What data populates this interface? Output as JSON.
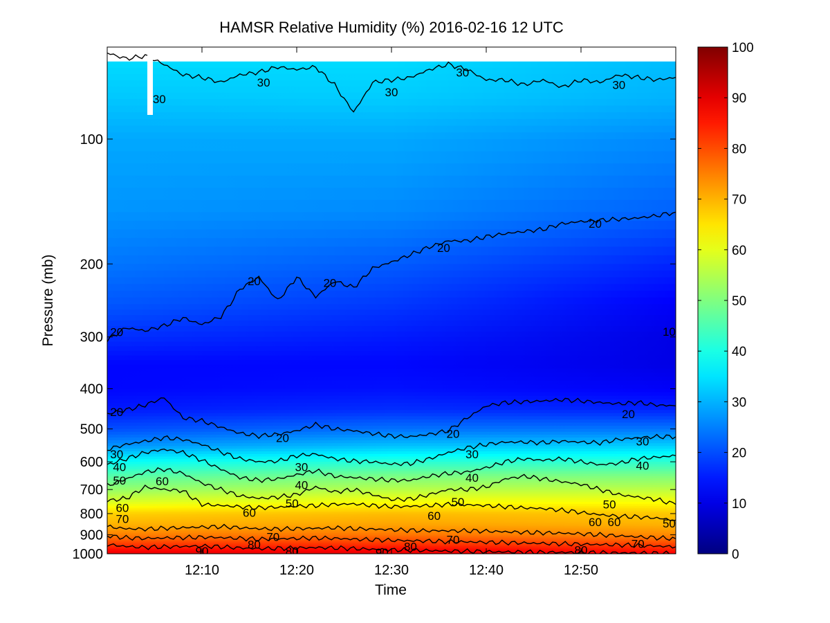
{
  "chart_data": {
    "type": "heatmap",
    "title": "HAMSR  Relative Humidity (%) 2016-02-16 12 UTC",
    "xlabel": "Time",
    "ylabel": "Pressure (mb)",
    "x_ticks": [
      "12:10",
      "12:20",
      "12:30",
      "12:40",
      "12:50"
    ],
    "x_tick_minutes": [
      10,
      20,
      30,
      40,
      50
    ],
    "xlim_minutes": [
      0,
      60
    ],
    "y_ticks": [
      100,
      200,
      300,
      400,
      500,
      600,
      700,
      800,
      900,
      1000
    ],
    "ylim": [
      60,
      1000
    ],
    "y_scale": "log",
    "y_reversed": true,
    "colorbar": {
      "min": 0,
      "max": 100,
      "ticks": [
        0,
        10,
        20,
        30,
        40,
        50,
        60,
        70,
        80,
        90,
        100
      ],
      "colormap": "jet"
    },
    "contour_levels": [
      10,
      20,
      30,
      40,
      50,
      60,
      70,
      80,
      90
    ],
    "profile": {
      "pressure": [
        65,
        80,
        100,
        150,
        200,
        250,
        300,
        350,
        400,
        450,
        500,
        550,
        600,
        650,
        700,
        750,
        800,
        850,
        900,
        950,
        1000
      ],
      "rh_start": [
        34,
        32,
        29,
        27,
        24,
        21,
        17,
        13,
        13,
        15,
        20,
        27,
        38,
        46,
        52,
        59,
        67,
        70,
        75,
        82,
        90
      ],
      "rh_end": [
        31,
        30,
        26,
        22,
        16,
        12,
        10,
        10,
        12,
        16,
        24,
        33,
        42,
        50,
        56,
        62,
        68,
        70,
        74,
        81,
        88
      ]
    },
    "contours": [
      {
        "level": 30,
        "x_minutes": [
          0,
          2,
          4,
          6,
          8,
          10,
          12,
          14,
          16,
          18,
          20,
          22,
          24,
          26,
          28,
          30,
          32,
          34,
          36,
          38,
          40,
          42,
          44,
          46,
          48,
          50,
          52,
          54,
          56,
          58,
          60
        ],
        "pressure": [
          62,
          64,
          63,
          66,
          70,
          71,
          73,
          70,
          69,
          67,
          68,
          67,
          74,
          86,
          73,
          72,
          71,
          68,
          66,
          68,
          72,
          72,
          74,
          72,
          75,
          72,
          73,
          70,
          71,
          72,
          71
        ]
      },
      {
        "level": 20,
        "x_minutes": [
          0,
          2,
          4,
          6,
          8,
          10,
          12,
          14,
          16,
          18,
          20,
          22,
          24,
          26,
          28,
          30,
          32,
          34,
          36,
          38,
          40,
          42,
          44,
          46,
          48,
          50,
          52,
          54,
          56,
          58,
          60
        ],
        "pressure": [
          305,
          285,
          290,
          282,
          270,
          280,
          268,
          230,
          215,
          245,
          215,
          240,
          220,
          228,
          205,
          198,
          190,
          182,
          176,
          176,
          172,
          169,
          167,
          165,
          160,
          158,
          157,
          156,
          155,
          153,
          150
        ]
      },
      {
        "level": 20,
        "x_minutes": [
          0,
          2,
          4,
          6,
          8,
          10,
          12,
          14,
          16,
          18,
          20,
          22,
          24,
          26,
          28,
          30,
          32,
          34,
          36,
          38,
          40,
          42,
          44,
          46,
          48,
          50,
          52,
          54,
          56,
          58,
          60
        ],
        "pressure": [
          460,
          450,
          438,
          420,
          470,
          478,
          495,
          512,
          520,
          515,
          505,
          488,
          500,
          505,
          513,
          520,
          522,
          515,
          505,
          470,
          440,
          432,
          430,
          428,
          425,
          428,
          432,
          435,
          432,
          438,
          440
        ]
      },
      {
        "level": 30,
        "x_minutes": [
          0,
          2,
          4,
          6,
          8,
          10,
          12,
          14,
          16,
          18,
          20,
          22,
          24,
          26,
          28,
          30,
          32,
          34,
          36,
          38,
          40,
          42,
          44,
          46,
          48,
          50,
          52,
          54,
          56,
          58,
          60
        ],
        "pressure": [
          560,
          545,
          535,
          525,
          530,
          545,
          568,
          590,
          600,
          598,
          580,
          575,
          590,
          598,
          600,
          608,
          606,
          590,
          570,
          555,
          545,
          538,
          538,
          540,
          535,
          538,
          540,
          530,
          525,
          522,
          522
        ]
      },
      {
        "level": 40,
        "x_minutes": [
          0,
          2,
          4,
          6,
          8,
          10,
          12,
          14,
          16,
          18,
          20,
          22,
          24,
          26,
          28,
          30,
          32,
          34,
          36,
          38,
          40,
          42,
          44,
          46,
          48,
          50,
          52,
          54,
          56,
          58,
          60
        ],
        "pressure": [
          610,
          590,
          570,
          560,
          570,
          595,
          625,
          655,
          665,
          660,
          645,
          630,
          650,
          655,
          660,
          665,
          665,
          650,
          640,
          635,
          620,
          600,
          590,
          595,
          590,
          600,
          610,
          605,
          590,
          585,
          580
        ]
      },
      {
        "level": 50,
        "x_minutes": [
          0,
          2,
          4,
          6,
          8,
          10,
          12,
          14,
          16,
          18,
          20,
          22,
          24,
          26,
          28,
          30,
          32,
          34,
          36,
          38,
          40,
          42,
          44,
          46,
          48,
          50,
          52,
          54,
          56,
          58,
          60
        ],
        "pressure": [
          685,
          660,
          635,
          625,
          640,
          675,
          700,
          725,
          735,
          730,
          720,
          690,
          710,
          700,
          720,
          740,
          738,
          720,
          700,
          700,
          690,
          660,
          650,
          660,
          670,
          680,
          700,
          720,
          730,
          740,
          760
        ]
      },
      {
        "level": 60,
        "x_minutes": [
          0,
          2,
          4,
          6,
          8,
          10,
          12,
          14,
          16,
          18,
          20,
          22,
          24,
          26,
          28,
          30,
          32,
          34,
          36,
          38,
          40,
          42,
          44,
          46,
          48,
          50,
          52,
          54,
          56,
          58,
          60
        ],
        "pressure": [
          745,
          735,
          690,
          700,
          705,
          760,
          765,
          770,
          775,
          772,
          768,
          765,
          760,
          758,
          765,
          770,
          768,
          765,
          760,
          762,
          765,
          770,
          775,
          778,
          785,
          795,
          805,
          812,
          815,
          820,
          830
        ]
      },
      {
        "level": 70,
        "x_minutes": [
          0,
          2,
          4,
          6,
          8,
          10,
          12,
          14,
          16,
          18,
          20,
          22,
          24,
          26,
          28,
          30,
          32,
          34,
          36,
          38,
          40,
          42,
          44,
          46,
          48,
          50,
          52,
          54,
          56,
          58,
          60
        ],
        "pressure": [
          860,
          870,
          872,
          868,
          865,
          862,
          860,
          865,
          870,
          872,
          870,
          868,
          866,
          870,
          872,
          875,
          878,
          880,
          880,
          880,
          882,
          885,
          888,
          890,
          892,
          895,
          900,
          905,
          910,
          915,
          920
        ]
      },
      {
        "level": 80,
        "x_minutes": [
          0,
          2,
          4,
          6,
          8,
          10,
          12,
          14,
          16,
          18,
          20,
          22,
          24,
          26,
          28,
          30,
          32,
          34,
          36,
          38,
          40,
          42,
          44,
          46,
          48,
          50,
          52,
          54,
          56,
          58,
          60
        ],
        "pressure": [
          905,
          915,
          918,
          916,
          914,
          912,
          914,
          918,
          922,
          920,
          918,
          916,
          918,
          922,
          925,
          928,
          930,
          932,
          935,
          936,
          938,
          940,
          942,
          944,
          946,
          948,
          950,
          952,
          955,
          958,
          962
        ]
      },
      {
        "level": 90,
        "x_minutes": [
          0,
          2,
          4,
          6,
          8,
          10,
          12,
          14,
          16,
          18,
          20,
          22,
          24,
          26,
          28,
          30,
          32,
          34,
          36,
          38,
          40,
          42,
          44,
          46,
          48,
          50,
          52,
          54,
          56,
          58,
          60
        ],
        "pressure": [
          950,
          960,
          965,
          962,
          960,
          958,
          962,
          968,
          972,
          970,
          968,
          966,
          968,
          972,
          975,
          978,
          980,
          982,
          985,
          986,
          988,
          990,
          990,
          992,
          992,
          994,
          994,
          995,
          996,
          997,
          998
        ]
      }
    ],
    "contour_labels": [
      {
        "text": "30",
        "x_minutes": 5.5,
        "pressure": 80
      },
      {
        "text": "30",
        "x_minutes": 16.5,
        "pressure": 73
      },
      {
        "text": "30",
        "x_minutes": 30,
        "pressure": 77
      },
      {
        "text": "30",
        "x_minutes": 37.5,
        "pressure": 69
      },
      {
        "text": "30",
        "x_minutes": 54,
        "pressure": 74
      },
      {
        "text": "20",
        "x_minutes": 1,
        "pressure": 292
      },
      {
        "text": "20",
        "x_minutes": 15.5,
        "pressure": 220
      },
      {
        "text": "20",
        "x_minutes": 23.5,
        "pressure": 222
      },
      {
        "text": "20",
        "x_minutes": 35.5,
        "pressure": 183
      },
      {
        "text": "20",
        "x_minutes": 51.5,
        "pressure": 160
      },
      {
        "text": "20",
        "x_minutes": 1,
        "pressure": 455
      },
      {
        "text": "20",
        "x_minutes": 18.5,
        "pressure": 525
      },
      {
        "text": "20",
        "x_minutes": 36.5,
        "pressure": 513
      },
      {
        "text": "20",
        "x_minutes": 55,
        "pressure": 460
      },
      {
        "text": "10",
        "x_minutes": 59.3,
        "pressure": 291
      },
      {
        "text": "30",
        "x_minutes": 1,
        "pressure": 575
      },
      {
        "text": "30",
        "x_minutes": 20.5,
        "pressure": 617
      },
      {
        "text": "30",
        "x_minutes": 38.5,
        "pressure": 575
      },
      {
        "text": "30",
        "x_minutes": 56.5,
        "pressure": 535
      },
      {
        "text": "40",
        "x_minutes": 1.3,
        "pressure": 617
      },
      {
        "text": "40",
        "x_minutes": 20.5,
        "pressure": 682
      },
      {
        "text": "40",
        "x_minutes": 38.5,
        "pressure": 655
      },
      {
        "text": "40",
        "x_minutes": 56.5,
        "pressure": 613
      },
      {
        "text": "50",
        "x_minutes": 1.3,
        "pressure": 665
      },
      {
        "text": "50",
        "x_minutes": 19.5,
        "pressure": 755
      },
      {
        "text": "50",
        "x_minutes": 37,
        "pressure": 750
      },
      {
        "text": "50",
        "x_minutes": 53,
        "pressure": 760
      },
      {
        "text": "50",
        "x_minutes": 59.3,
        "pressure": 845
      },
      {
        "text": "60",
        "x_minutes": 5.8,
        "pressure": 668
      },
      {
        "text": "60",
        "x_minutes": 1.6,
        "pressure": 775
      },
      {
        "text": "60",
        "x_minutes": 15,
        "pressure": 795
      },
      {
        "text": "60",
        "x_minutes": 34.5,
        "pressure": 810
      },
      {
        "text": "60",
        "x_minutes": 51.5,
        "pressure": 838
      },
      {
        "text": "60",
        "x_minutes": 53.5,
        "pressure": 838
      },
      {
        "text": "70",
        "x_minutes": 1.6,
        "pressure": 823
      },
      {
        "text": "70",
        "x_minutes": 17.5,
        "pressure": 910
      },
      {
        "text": "70",
        "x_minutes": 36.5,
        "pressure": 925
      },
      {
        "text": "70",
        "x_minutes": 56,
        "pressure": 945
      },
      {
        "text": "80",
        "x_minutes": 15.5,
        "pressure": 950
      },
      {
        "text": "80",
        "x_minutes": 19.5,
        "pressure": 985
      },
      {
        "text": "80",
        "x_minutes": 32,
        "pressure": 960
      },
      {
        "text": "80",
        "x_minutes": 50,
        "pressure": 980
      },
      {
        "text": "90",
        "x_minutes": 10,
        "pressure": 985
      },
      {
        "text": "90",
        "x_minutes": 29,
        "pressure": 993
      }
    ],
    "grid": false,
    "legend": "none"
  }
}
